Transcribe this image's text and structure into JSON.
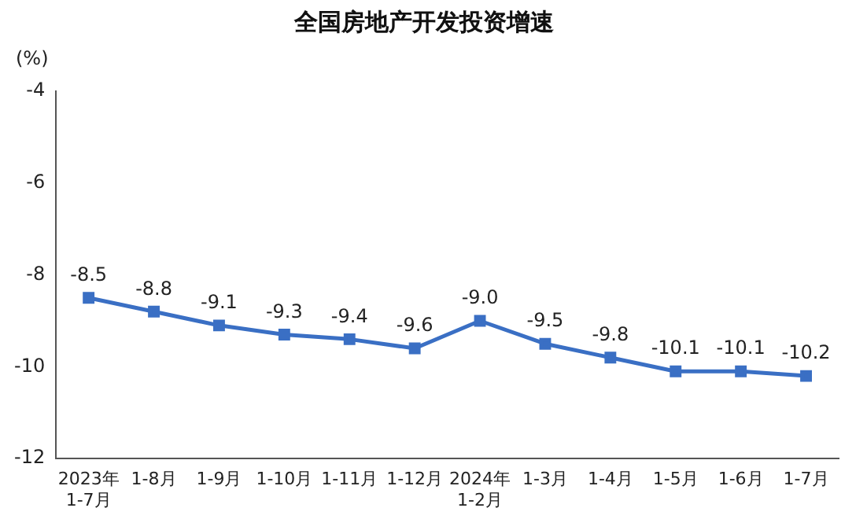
{
  "chart_data": {
    "type": "line",
    "title": "全国房地产开发投资增速",
    "ylabel": "(%)",
    "categories": [
      "2023年\n1-7月",
      "1-8月",
      "1-9月",
      "1-10月",
      "1-11月",
      "1-12月",
      "2024年\n1-2月",
      "1-3月",
      "1-4月",
      "1-5月",
      "1-6月",
      "1-7月"
    ],
    "series": [
      {
        "color": "#3a6fc4",
        "values": [
          -8.5,
          -8.8,
          -9.1,
          -9.3,
          -9.4,
          -9.6,
          -9.0,
          -9.5,
          -9.8,
          -10.1,
          -10.1,
          -10.2
        ],
        "value_labels": [
          "-8.5",
          "-8.8",
          "-9.1",
          "-9.3",
          "-9.4",
          "-9.6",
          "-9.0",
          "-9.5",
          "-9.8",
          "-10.1",
          "-10.1",
          "-10.2"
        ]
      }
    ],
    "ylim": [
      -12,
      -4
    ],
    "yticks": [
      -12,
      -10,
      -8,
      -6,
      -4
    ],
    "grid": false,
    "legend": false,
    "marker": "square",
    "line_style": "solid"
  }
}
